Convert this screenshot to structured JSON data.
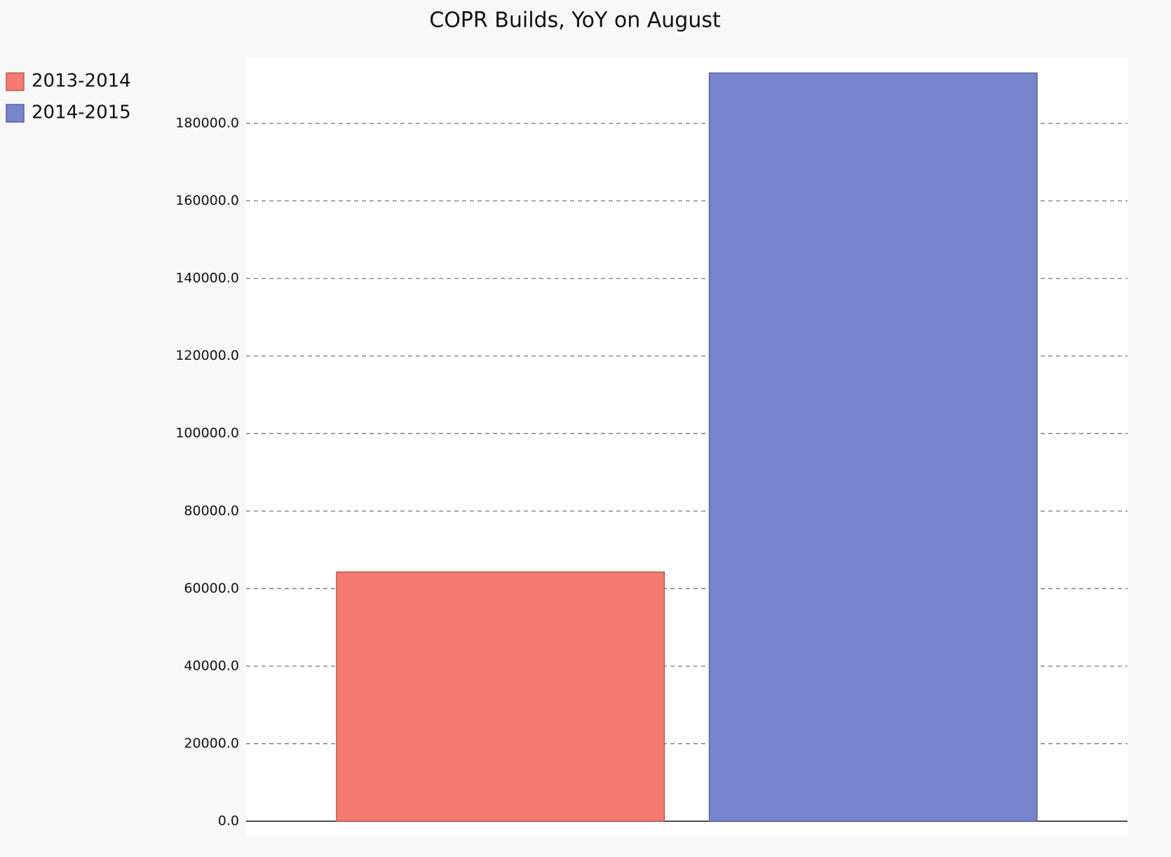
{
  "chart_data": {
    "type": "bar",
    "title": "COPR Builds, YoY on August",
    "categories": [
      null
    ],
    "series": [
      {
        "name": "2013-2014",
        "color": "#f67a6e",
        "values": [
          64300
        ]
      },
      {
        "name": "2014-2015",
        "color": "#7884cb",
        "values": [
          193000
        ]
      }
    ],
    "ylim": [
      0,
      197000
    ],
    "yticks": [
      {
        "value": 0,
        "label": "0.0"
      },
      {
        "value": 20000,
        "label": "20000.0"
      },
      {
        "value": 40000,
        "label": "40000.0"
      },
      {
        "value": 60000,
        "label": "60000.0"
      },
      {
        "value": 80000,
        "label": "80000.0"
      },
      {
        "value": 100000,
        "label": "100000.0"
      },
      {
        "value": 120000,
        "label": "120000.0"
      },
      {
        "value": 140000,
        "label": "140000.0"
      },
      {
        "value": 160000,
        "label": "160000.0"
      },
      {
        "value": 180000,
        "label": "180000.0"
      }
    ],
    "grid": true,
    "legend": "top-left"
  }
}
